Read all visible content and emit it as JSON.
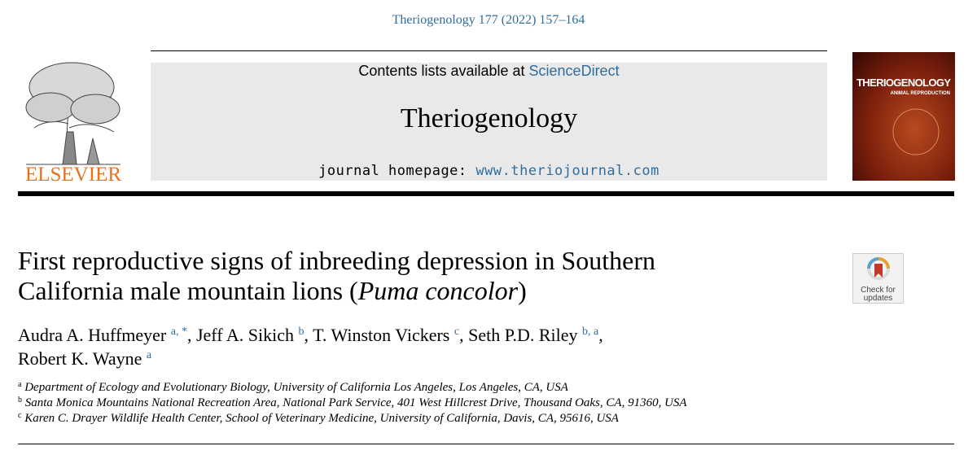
{
  "header": {
    "citation": "Theriogenology 177 (2022) 157–164",
    "banner": {
      "contents_prefix": "Contents lists available at",
      "contents_link": "ScienceDirect",
      "journal": "Theriogenology",
      "homepage_prefix": "journal homepage:",
      "homepage_link": "www.theriojournal.com"
    },
    "publisher": "ELSEVIER",
    "cover": {
      "title": "THERIOGENOLOGY",
      "subtitle": "ANIMAL REPRODUCTION"
    },
    "check_updates": [
      "Check for",
      "updates"
    ]
  },
  "article": {
    "title": {
      "before": "First reproductive signs of inbreeding depression in Southern California male mountain lions (",
      "italic": "Puma concolor",
      "after": ")"
    },
    "authors": [
      {
        "name": "Audra A. Huffmeyer",
        "sup": "a, *",
        "after": ","
      },
      {
        "name": "Jeff A. Sikich",
        "sup": "b",
        "after": ","
      },
      {
        "name": "T. Winston Vickers",
        "sup": "c",
        "after": ","
      },
      {
        "name": "Seth P.D. Riley",
        "sup": "b, a",
        "after": ","
      },
      {
        "name": "Robert K. Wayne",
        "sup": "a"
      }
    ],
    "affiliations": [
      {
        "label": "a",
        "text": "Department of Ecology and Evolutionary Biology, University of California Los Angeles, Los Angeles, CA, USA"
      },
      {
        "label": "b",
        "text": "Santa Monica Mountains National Recreation Area, National Park Service, 401 West Hillcrest Drive, Thousand Oaks, CA, 91360, USA"
      },
      {
        "label": "c",
        "text": "Karen C. Drayer Wildlife Health Center, School of Veterinary Medicine, University of California, Davis, CA, 95616, USA"
      }
    ]
  }
}
